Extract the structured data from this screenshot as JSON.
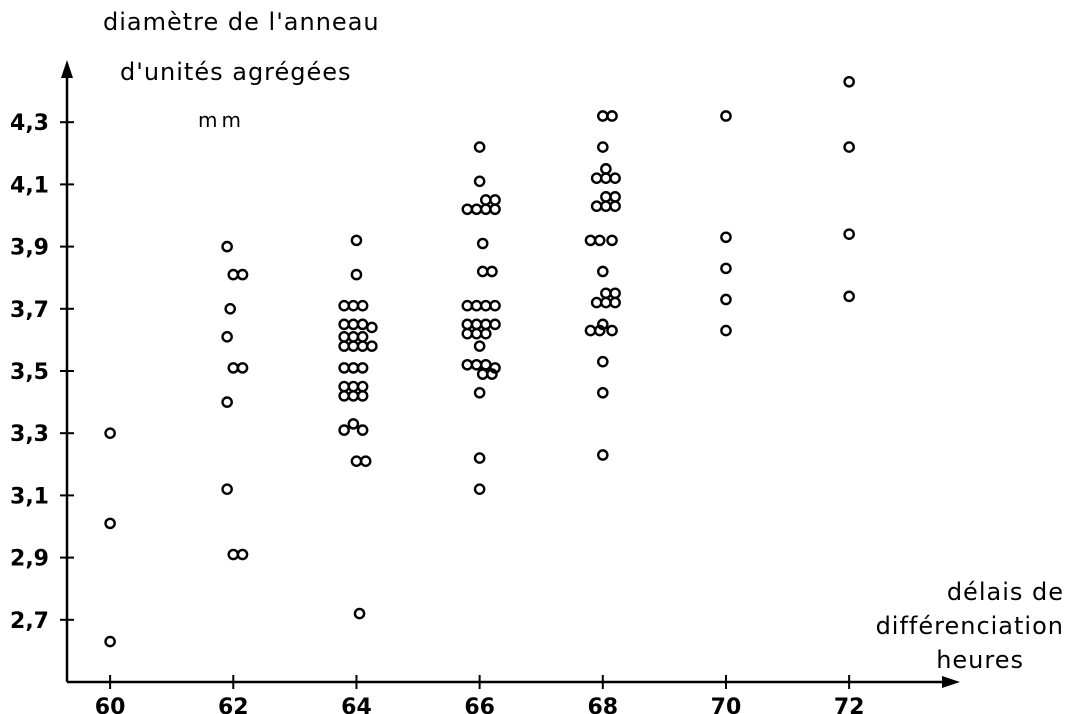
{
  "chart_data": {
    "type": "scatter",
    "title": "",
    "ylabel_lines": [
      "diamètre de l'anneau",
      "d'unités agrégées",
      "mm"
    ],
    "xlabel_lines": [
      "délais de",
      "différenciation",
      "heures"
    ],
    "xlim": [
      59.3,
      73.8
    ],
    "ylim": [
      2.5,
      4.5
    ],
    "xticks": [
      60,
      62,
      64,
      66,
      68,
      70,
      72
    ],
    "xtick_labels": [
      "60",
      "62",
      "64",
      "66",
      "68",
      "70",
      "72"
    ],
    "yticks": [
      2.7,
      2.9,
      3.1,
      3.3,
      3.5,
      3.7,
      3.9,
      4.1,
      4.3
    ],
    "ytick_labels": [
      "2,7",
      "2,9",
      "3,1",
      "3,3",
      "3,5",
      "3,7",
      "3,9",
      "4,1",
      "4,3"
    ],
    "grid": false,
    "points": [
      [
        60.0,
        3.3
      ],
      [
        60.0,
        3.01
      ],
      [
        60.0,
        2.63
      ],
      [
        61.9,
        3.9
      ],
      [
        61.95,
        3.7
      ],
      [
        61.9,
        3.61
      ],
      [
        61.9,
        3.4
      ],
      [
        61.9,
        3.12
      ],
      [
        62.0,
        3.81
      ],
      [
        62.15,
        3.81
      ],
      [
        62.0,
        3.51
      ],
      [
        62.15,
        3.51
      ],
      [
        62.0,
        2.91
      ],
      [
        62.15,
        2.91
      ],
      [
        64.0,
        3.92
      ],
      [
        64.0,
        3.81
      ],
      [
        64.05,
        2.72
      ],
      [
        63.8,
        3.71
      ],
      [
        63.95,
        3.71
      ],
      [
        64.1,
        3.71
      ],
      [
        63.8,
        3.65
      ],
      [
        63.95,
        3.65
      ],
      [
        64.1,
        3.65
      ],
      [
        64.25,
        3.64
      ],
      [
        63.8,
        3.61
      ],
      [
        63.95,
        3.61
      ],
      [
        64.1,
        3.61
      ],
      [
        63.8,
        3.58
      ],
      [
        63.95,
        3.58
      ],
      [
        64.1,
        3.58
      ],
      [
        64.25,
        3.58
      ],
      [
        63.8,
        3.51
      ],
      [
        63.95,
        3.51
      ],
      [
        64.1,
        3.51
      ],
      [
        63.8,
        3.45
      ],
      [
        63.95,
        3.45
      ],
      [
        64.1,
        3.45
      ],
      [
        63.8,
        3.42
      ],
      [
        63.95,
        3.42
      ],
      [
        64.1,
        3.42
      ],
      [
        63.95,
        3.33
      ],
      [
        63.8,
        3.31
      ],
      [
        64.1,
        3.31
      ],
      [
        64.0,
        3.21
      ],
      [
        64.15,
        3.21
      ],
      [
        66.0,
        4.22
      ],
      [
        66.0,
        4.11
      ],
      [
        66.05,
        3.91
      ],
      [
        66.0,
        3.43
      ],
      [
        66.0,
        3.22
      ],
      [
        66.0,
        3.12
      ],
      [
        66.1,
        4.05
      ],
      [
        66.25,
        4.05
      ],
      [
        65.8,
        4.02
      ],
      [
        65.95,
        4.02
      ],
      [
        66.1,
        4.02
      ],
      [
        66.25,
        4.02
      ],
      [
        66.05,
        3.82
      ],
      [
        66.2,
        3.82
      ],
      [
        65.8,
        3.71
      ],
      [
        65.95,
        3.71
      ],
      [
        66.1,
        3.71
      ],
      [
        66.25,
        3.71
      ],
      [
        65.8,
        3.65
      ],
      [
        65.95,
        3.65
      ],
      [
        66.1,
        3.65
      ],
      [
        66.25,
        3.65
      ],
      [
        65.8,
        3.62
      ],
      [
        65.95,
        3.62
      ],
      [
        66.1,
        3.62
      ],
      [
        66.0,
        3.58
      ],
      [
        65.8,
        3.52
      ],
      [
        65.95,
        3.52
      ],
      [
        66.1,
        3.52
      ],
      [
        66.25,
        3.51
      ],
      [
        66.05,
        3.49
      ],
      [
        66.2,
        3.49
      ],
      [
        68.0,
        4.32
      ],
      [
        68.15,
        4.32
      ],
      [
        68.0,
        4.22
      ],
      [
        68.05,
        4.15
      ],
      [
        67.9,
        4.12
      ],
      [
        68.05,
        4.12
      ],
      [
        68.2,
        4.12
      ],
      [
        68.05,
        4.06
      ],
      [
        68.2,
        4.06
      ],
      [
        67.9,
        4.03
      ],
      [
        68.05,
        4.03
      ],
      [
        68.2,
        4.03
      ],
      [
        67.8,
        3.92
      ],
      [
        67.95,
        3.92
      ],
      [
        68.15,
        3.92
      ],
      [
        68.0,
        3.82
      ],
      [
        68.05,
        3.75
      ],
      [
        68.2,
        3.75
      ],
      [
        67.9,
        3.72
      ],
      [
        68.05,
        3.72
      ],
      [
        68.2,
        3.72
      ],
      [
        68.0,
        3.65
      ],
      [
        67.8,
        3.63
      ],
      [
        67.95,
        3.63
      ],
      [
        68.15,
        3.63
      ],
      [
        68.0,
        3.53
      ],
      [
        68.0,
        3.43
      ],
      [
        68.0,
        3.23
      ],
      [
        70.0,
        4.32
      ],
      [
        70.0,
        3.93
      ],
      [
        70.0,
        3.83
      ],
      [
        70.0,
        3.73
      ],
      [
        70.0,
        3.63
      ],
      [
        72.0,
        4.43
      ],
      [
        72.0,
        4.22
      ],
      [
        72.0,
        3.94
      ],
      [
        72.0,
        3.74
      ]
    ]
  }
}
